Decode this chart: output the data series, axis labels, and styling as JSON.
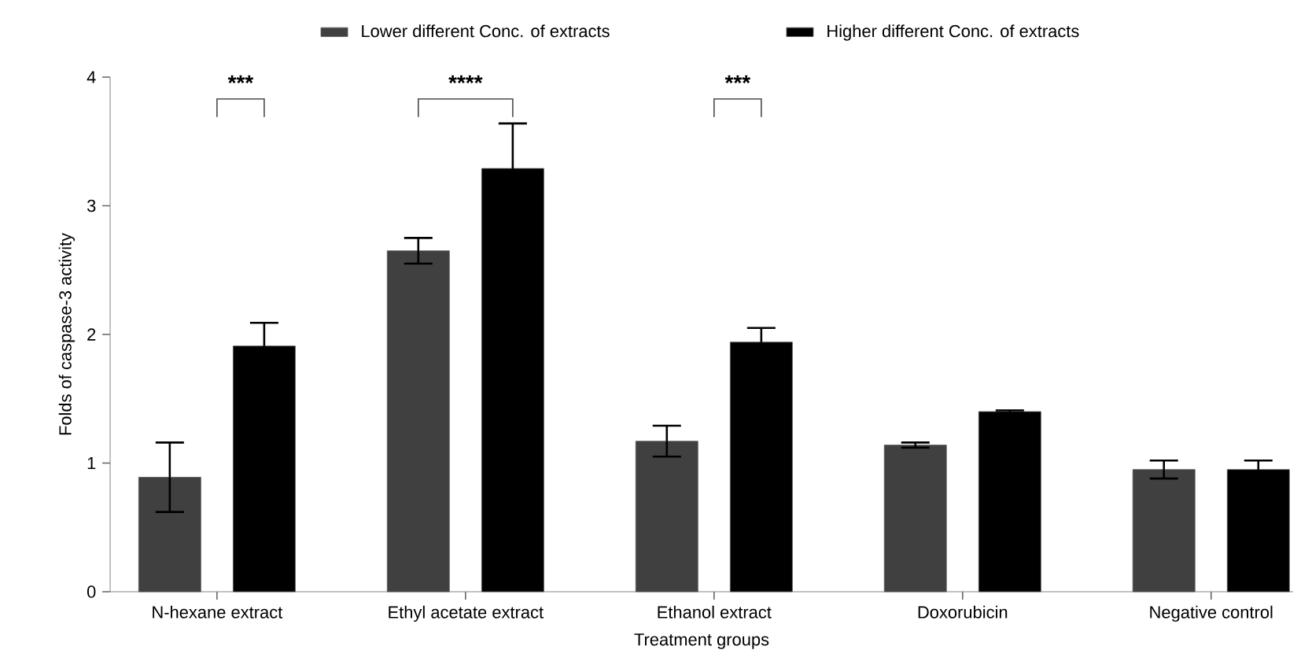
{
  "chart_data": {
    "type": "bar",
    "xlabel": "Treatment groups",
    "ylabel": "Folds of caspase-3 activity",
    "categories": [
      "N-hexane extract",
      "Ethyl acetate extract",
      "Ethanol extract",
      "Doxorubicin",
      "Negative control"
    ],
    "series": [
      {
        "name": "Lower different Conc. of extracts",
        "color": "#404040",
        "values": [
          0.89,
          2.65,
          1.17,
          1.14,
          0.95
        ],
        "errors": [
          0.27,
          0.1,
          0.12,
          0.02,
          0.07
        ]
      },
      {
        "name": "Higher different Conc. of extracts",
        "color": "#000000",
        "values": [
          1.91,
          3.29,
          1.94,
          1.4,
          0.95
        ],
        "errors": [
          0.18,
          0.35,
          0.11,
          0.01,
          0.07
        ]
      }
    ],
    "ylim": [
      0,
      4
    ],
    "yticks": [
      0,
      1,
      2,
      3,
      4
    ],
    "grid": false,
    "legend": "top",
    "annotations": [
      "***",
      "****",
      "***"
    ]
  }
}
